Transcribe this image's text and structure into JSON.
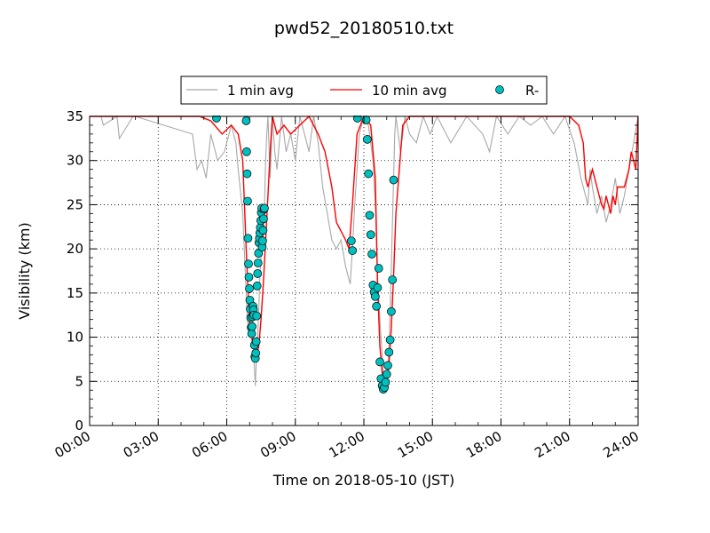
{
  "chart_data": {
    "type": "line",
    "title": "pwd52_20180510.txt",
    "xlabel": "Time on 2018-05-10 (JST)",
    "ylabel": "Visibility (km)",
    "xlim_hours": [
      0,
      24
    ],
    "ylim": [
      0,
      35
    ],
    "x_ticks": [
      "00:00",
      "03:00",
      "06:00",
      "09:00",
      "12:00",
      "15:00",
      "18:00",
      "21:00",
      "24:00"
    ],
    "y_ticks": [
      "0",
      "5",
      "10",
      "15",
      "20",
      "25",
      "30",
      "35"
    ],
    "grid": true,
    "legend_position": "top-center",
    "legend": {
      "one_min": "1 min avg",
      "ten_min": "10 min avg",
      "rain": "R-"
    },
    "series_colors": {
      "one_min": "#a8a8a8",
      "ten_min": "#ff0000",
      "rain_fill": "#00bfbf"
    },
    "series": [
      {
        "name": "1 min avg",
        "x": [
          0.0,
          0.5,
          0.6,
          1.2,
          1.3,
          1.9,
          2.0,
          4.5,
          4.7,
          4.9,
          5.1,
          5.3,
          5.6,
          5.9,
          6.2,
          6.4,
          6.5,
          6.7,
          6.9,
          7.0,
          7.05,
          7.1,
          7.15,
          7.2,
          7.25,
          7.3,
          7.35,
          7.4,
          7.45,
          7.5,
          7.55,
          7.6,
          7.65,
          7.7,
          7.75,
          7.8,
          7.9,
          8.0,
          8.1,
          8.2,
          8.4,
          8.6,
          8.8,
          9.0,
          9.2,
          9.4,
          9.6,
          9.8,
          10.0,
          10.2,
          10.4,
          10.6,
          10.8,
          11.0,
          11.2,
          11.4,
          11.5,
          11.6,
          11.8,
          12.0,
          12.2,
          12.4,
          12.5,
          12.6,
          12.7,
          12.8,
          12.85,
          12.9,
          12.95,
          13.0,
          13.05,
          13.1,
          13.15,
          13.2,
          13.25,
          13.3,
          13.35,
          13.4,
          13.6,
          13.8,
          14.0,
          14.3,
          14.6,
          14.9,
          15.2,
          15.8,
          16.5,
          17.2,
          17.5,
          17.8,
          18.3,
          18.8,
          19.3,
          19.8,
          20.3,
          20.8,
          21.2,
          21.5,
          21.7,
          21.8,
          21.9,
          22.0,
          22.2,
          22.4,
          22.6,
          22.8,
          23.0,
          23.2,
          23.4,
          23.6,
          23.8,
          24.0
        ],
        "values": [
          35,
          35,
          34,
          35,
          32.5,
          35,
          35,
          33,
          29,
          30,
          28,
          33,
          30,
          31,
          34,
          32,
          29,
          24,
          12,
          10,
          11,
          9,
          12,
          7,
          4.5,
          8,
          10,
          13,
          17,
          19,
          20,
          22,
          25,
          30,
          33,
          35,
          28,
          35,
          31,
          29,
          35,
          31,
          33,
          30,
          35,
          33,
          31,
          35,
          32,
          27,
          24,
          21,
          20,
          21,
          18,
          16,
          20,
          25,
          33,
          35,
          34,
          30,
          25,
          17,
          12,
          8,
          6,
          5,
          4,
          5,
          6,
          9,
          13,
          18,
          23,
          28,
          33,
          35,
          31,
          35,
          33,
          32,
          35,
          33,
          35,
          32,
          35,
          33,
          31,
          35,
          33,
          35,
          34,
          35,
          33,
          35,
          32,
          28,
          26,
          25,
          29,
          27,
          24,
          26,
          23,
          25,
          28,
          24,
          26,
          29,
          32,
          35
        ]
      },
      {
        "name": "10 min avg",
        "x": [
          0.0,
          4.8,
          5.3,
          5.8,
          6.2,
          6.5,
          6.7,
          6.85,
          7.0,
          7.1,
          7.2,
          7.3,
          7.4,
          7.5,
          7.6,
          7.7,
          7.8,
          7.9,
          8.0,
          8.2,
          8.5,
          8.8,
          9.2,
          9.6,
          10.0,
          10.3,
          10.6,
          10.8,
          11.0,
          11.2,
          11.35,
          11.5,
          11.7,
          12.0,
          12.3,
          12.5,
          12.6,
          12.7,
          12.8,
          12.9,
          13.0,
          13.1,
          13.2,
          13.3,
          13.4,
          13.7,
          14.0,
          15.0,
          16.0,
          17.0,
          18.0,
          19.0,
          20.0,
          21.0,
          21.4,
          21.6,
          21.7,
          21.8,
          21.9,
          22.0,
          22.1,
          22.2,
          22.3,
          22.4,
          22.5,
          22.6,
          22.7,
          22.8,
          22.9,
          23.0,
          23.1,
          23.2,
          23.4,
          23.6,
          23.7,
          23.8,
          23.9,
          24.0
        ],
        "values": [
          35,
          35,
          34.5,
          33,
          34,
          33,
          30,
          20,
          11,
          10,
          9,
          8,
          9,
          12,
          16,
          21,
          26,
          31,
          35,
          33,
          34,
          33,
          34,
          35,
          33,
          31,
          27,
          23,
          22,
          21,
          20,
          25,
          33,
          35,
          34,
          28,
          16,
          9,
          6,
          4.5,
          5,
          7,
          11,
          17,
          24,
          34,
          35,
          35,
          35,
          35,
          35,
          35,
          35,
          35,
          34,
          32,
          28,
          27,
          28,
          29,
          28,
          27,
          26,
          25,
          24.5,
          26,
          25,
          24,
          26,
          25,
          27,
          27,
          27,
          29,
          31,
          30,
          29,
          35
        ]
      },
      {
        "name": "R-",
        "x": [
          5.55,
          6.85,
          6.87,
          6.89,
          6.91,
          6.93,
          6.95,
          6.97,
          6.99,
          7.01,
          7.03,
          7.05,
          7.07,
          7.09,
          7.11,
          7.13,
          7.15,
          7.17,
          7.19,
          7.21,
          7.23,
          7.25,
          7.27,
          7.29,
          7.31,
          7.33,
          7.35,
          7.37,
          7.39,
          7.41,
          7.43,
          7.45,
          7.47,
          7.49,
          7.51,
          7.53,
          7.55,
          7.57,
          7.59,
          7.61,
          7.63,
          7.65,
          11.45,
          11.5,
          11.72,
          12.1,
          12.15,
          12.2,
          12.25,
          12.3,
          12.35,
          12.4,
          12.45,
          12.5,
          12.55,
          12.6,
          12.65,
          12.7,
          12.75,
          12.8,
          12.85,
          12.9,
          12.95,
          13.0,
          13.05,
          13.1,
          13.15,
          13.2,
          13.25,
          13.3
        ],
        "values": [
          34.8,
          34.5,
          31,
          28.5,
          25.4,
          21.2,
          18.3,
          16.8,
          15.5,
          14.2,
          13.2,
          12.2,
          11.1,
          10.4,
          11.2,
          12.3,
          13.5,
          13.1,
          12.5,
          9.1,
          7.8,
          7.6,
          8.2,
          9.5,
          12.4,
          15.8,
          17.2,
          18.4,
          19.5,
          20.7,
          21.2,
          21.8,
          22.4,
          23.2,
          24.1,
          24.6,
          20.2,
          20.9,
          22.1,
          23.4,
          24.5,
          24.6,
          20.9,
          19.8,
          34.8,
          34.6,
          32.4,
          28.5,
          23.8,
          21.6,
          19.4,
          15.9,
          15.1,
          14.6,
          13.5,
          15.6,
          17.8,
          7.2,
          5.3,
          4.5,
          4.1,
          4.3,
          4.9,
          5.8,
          6.8,
          8.3,
          9.7,
          12.9,
          16.5,
          27.8
        ]
      }
    ]
  }
}
